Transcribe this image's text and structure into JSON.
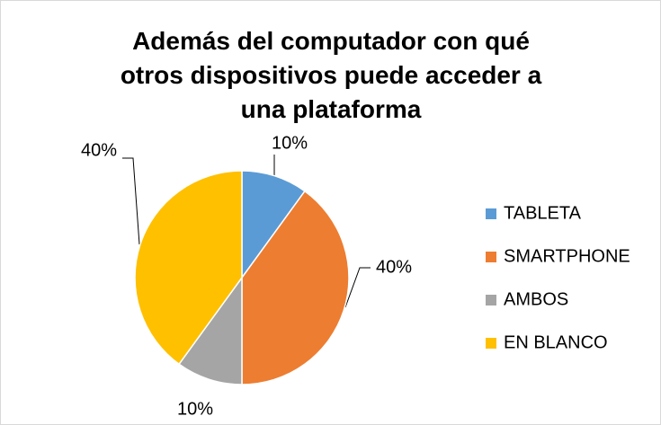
{
  "chart_data": {
    "type": "pie",
    "title": "Además del computador con qué otros dispositivos puede acceder a una plataforma",
    "categories": [
      "TABLETA",
      "SMARTPHONE",
      "AMBOS",
      "EN BLANCO"
    ],
    "values": [
      10,
      40,
      10,
      40
    ],
    "value_labels": [
      "10%",
      "40%",
      "10%",
      "40%"
    ],
    "colors": [
      "#5b9bd5",
      "#ed7d31",
      "#a5a5a5",
      "#ffc000"
    ],
    "legend": "right"
  }
}
